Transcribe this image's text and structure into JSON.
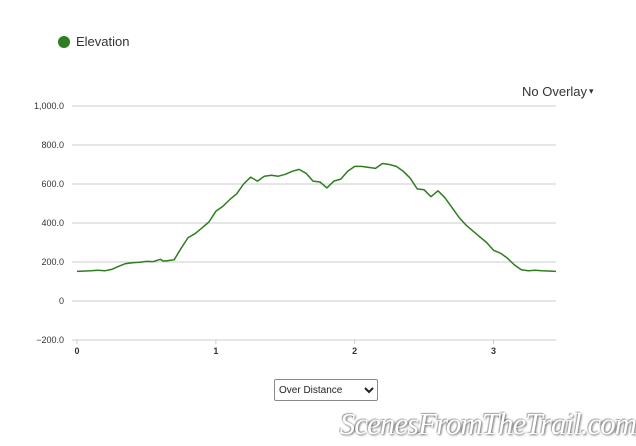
{
  "legend": {
    "label": "Elevation",
    "color": "#2e7d1f"
  },
  "overlay": {
    "label": "No Overlay",
    "caret": "▾"
  },
  "mode_select": {
    "value": "Over Distance",
    "options": [
      "Over Distance"
    ]
  },
  "watermark": {
    "text": "ScenesFromTheTrail.com"
  },
  "chart_data": {
    "type": "line",
    "title": "",
    "xlabel": "",
    "ylabel": "",
    "xlim": [
      0,
      3.45
    ],
    "ylim": [
      -200,
      1000
    ],
    "x_ticks": [
      0,
      1,
      2,
      3
    ],
    "x_tick_labels": [
      "0",
      "1",
      "2",
      "3"
    ],
    "y_ticks": [
      1000,
      800,
      600,
      400,
      200,
      0,
      -200
    ],
    "y_tick_labels": [
      "1,000.0",
      "800.0",
      "600.0",
      "400.0",
      "200.0",
      "0",
      "−200.0"
    ],
    "grid": true,
    "legend": "top-left",
    "series": [
      {
        "name": "Elevation",
        "color": "#2e7d1f",
        "x": [
          0,
          0.1,
          0.15,
          0.2,
          0.25,
          0.3,
          0.35,
          0.4,
          0.45,
          0.5,
          0.55,
          0.6,
          0.62,
          0.65,
          0.7,
          0.75,
          0.8,
          0.85,
          0.9,
          0.95,
          1.0,
          1.05,
          1.1,
          1.15,
          1.2,
          1.25,
          1.3,
          1.35,
          1.4,
          1.45,
          1.5,
          1.55,
          1.6,
          1.65,
          1.7,
          1.75,
          1.8,
          1.85,
          1.9,
          1.95,
          2.0,
          2.05,
          2.1,
          2.15,
          2.2,
          2.25,
          2.3,
          2.35,
          2.4,
          2.45,
          2.5,
          2.55,
          2.6,
          2.65,
          2.7,
          2.75,
          2.8,
          2.85,
          2.9,
          2.95,
          3.0,
          3.05,
          3.1,
          3.15,
          3.2,
          3.25,
          3.3,
          3.35,
          3.45
        ],
        "values": [
          152,
          155,
          158,
          155,
          162,
          178,
          192,
          196,
          199,
          203,
          202,
          214,
          205,
          206,
          212,
          270,
          325,
          345,
          375,
          405,
          460,
          485,
          520,
          550,
          600,
          635,
          615,
          640,
          645,
          640,
          650,
          665,
          675,
          655,
          615,
          610,
          580,
          615,
          625,
          665,
          690,
          690,
          685,
          680,
          705,
          700,
          690,
          665,
          630,
          575,
          570,
          535,
          565,
          530,
          480,
          430,
          390,
          360,
          330,
          300,
          260,
          245,
          220,
          185,
          160,
          155,
          158,
          155,
          152
        ]
      }
    ]
  }
}
